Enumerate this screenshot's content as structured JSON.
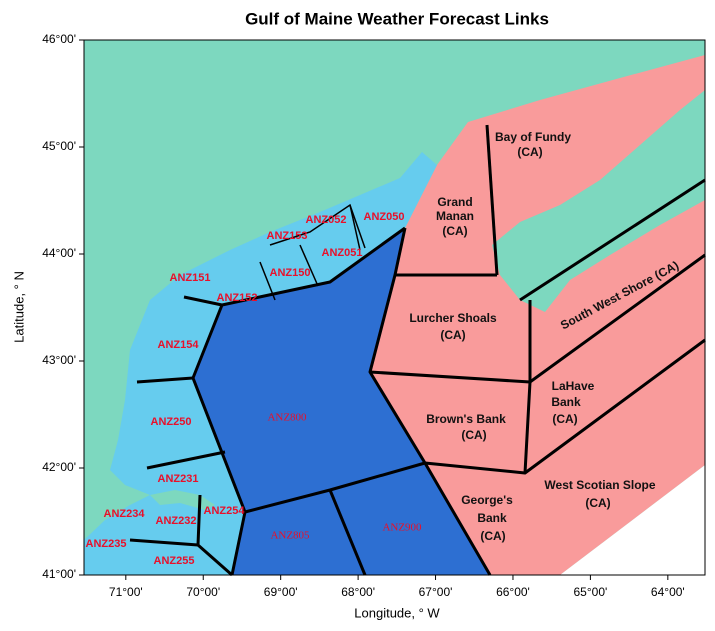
{
  "title": "Gulf of Maine Weather Forecast Links",
  "axes": {
    "x_label": "Longitude, ° W",
    "y_label": "Latitude, ° N",
    "xlim": [
      71.54,
      63.52
    ],
    "ylim": [
      41,
      46
    ],
    "xticks": [
      {
        "value": 71,
        "label": "71°00'"
      },
      {
        "value": 70,
        "label": "70°00'"
      },
      {
        "value": 69,
        "label": "69°00'"
      },
      {
        "value": 68,
        "label": "68°00'"
      },
      {
        "value": 67,
        "label": "67°00'"
      },
      {
        "value": 66,
        "label": "66°00'"
      },
      {
        "value": 65,
        "label": "65°00'"
      },
      {
        "value": 64,
        "label": "64°00'"
      }
    ],
    "yticks": [
      {
        "value": 41,
        "label": "41°00'"
      },
      {
        "value": 42,
        "label": "42°00'"
      },
      {
        "value": 43,
        "label": "43°00'"
      },
      {
        "value": 44,
        "label": "44°00'"
      },
      {
        "value": 45,
        "label": "45°00'"
      },
      {
        "value": 46,
        "label": "46°00'"
      }
    ]
  },
  "us_zones": [
    "ANZ050",
    "ANZ052",
    "ANZ153",
    "ANZ051",
    "ANZ150",
    "ANZ151",
    "ANZ152",
    "ANZ154",
    "ANZ250",
    "ANZ800",
    "ANZ231",
    "ANZ254",
    "ANZ234",
    "ANZ232",
    "ANZ235",
    "ANZ255",
    "ANZ805",
    "ANZ900"
  ],
  "ca_zones": [
    {
      "lines": [
        "Bay of Fundy",
        "(CA)"
      ]
    },
    {
      "lines": [
        "Grand",
        "Manan",
        "(CA)"
      ]
    },
    {
      "lines": [
        "Lurcher Shoals",
        "(CA)"
      ]
    },
    {
      "lines": [
        "Brown's Bank",
        "(CA)"
      ]
    },
    {
      "lines": [
        "George's",
        "Bank",
        "(CA)"
      ]
    },
    {
      "lines": [
        "LaHave",
        "Bank",
        "(CA)"
      ]
    },
    {
      "lines": [
        "West Scotian Slope",
        "(CA)"
      ]
    },
    {
      "lines": [
        "South West Shore (CA)"
      ]
    }
  ]
}
